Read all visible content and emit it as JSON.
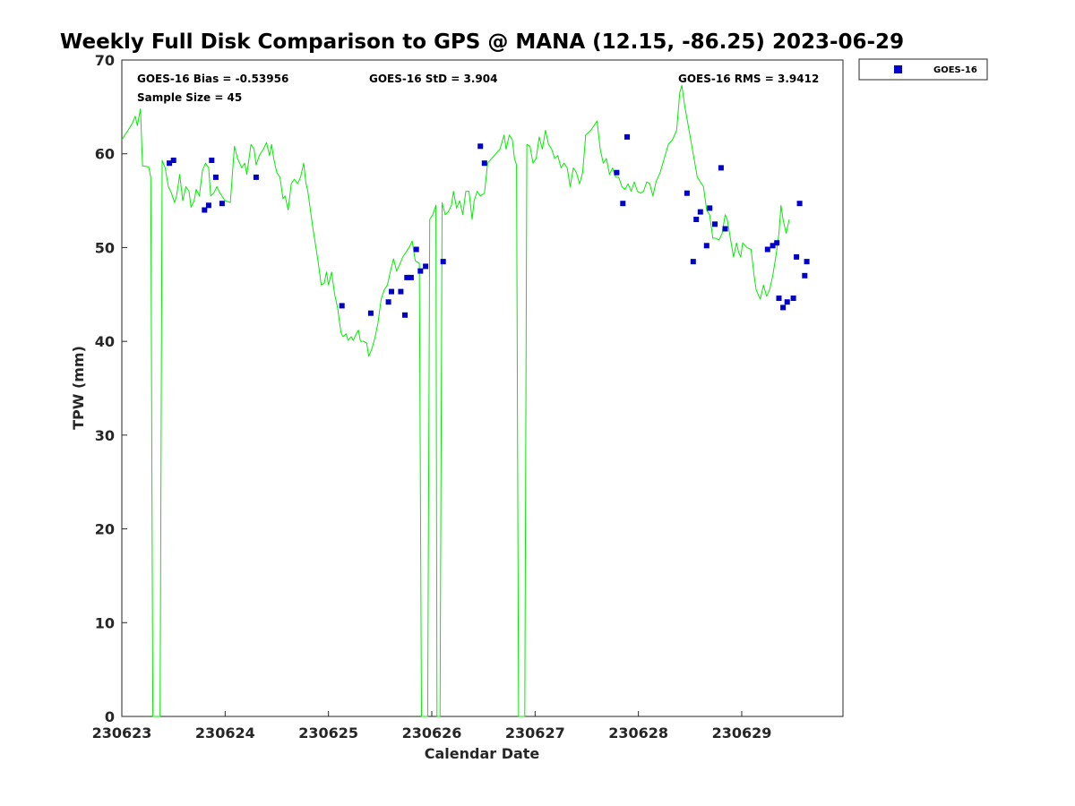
{
  "chart_data": {
    "type": "scatter",
    "title": "Weekly Full Disk Comparison to GPS @ MANA (12.15, -86.25) 2023-06-29",
    "xlabel": "Calendar Date",
    "ylabel": "TPW (mm)",
    "xlim": [
      0,
      6.98
    ],
    "ylim": [
      0,
      70
    ],
    "x_ticks": [
      0,
      1,
      2,
      3,
      4,
      5,
      6
    ],
    "x_tick_labels": [
      "230623",
      "230624",
      "230625",
      "230626",
      "230627",
      "230628",
      "230629"
    ],
    "y_ticks": [
      0,
      10,
      20,
      30,
      40,
      50,
      60,
      70
    ],
    "y_tick_labels": [
      "0",
      "10",
      "20",
      "30",
      "40",
      "50",
      "60",
      "70"
    ],
    "stats": {
      "bias": "GOES-16 Bias = -0.53956",
      "std": "GOES-16 StD = 3.904",
      "rms": "GOES-16 RMS = 3.9412",
      "sample": "Sample Size = 45"
    },
    "legend": [
      {
        "label": "GOES-16",
        "color": "#0000cd",
        "marker": "square"
      }
    ],
    "gps_series": {
      "name": "GPS",
      "color": "#00ee00",
      "points": [
        [
          0.0,
          61.5
        ],
        [
          0.06,
          62.5
        ],
        [
          0.1,
          63.2
        ],
        [
          0.13,
          64.0
        ],
        [
          0.15,
          63.0
        ],
        [
          0.18,
          64.8
        ],
        [
          0.2,
          58.7
        ],
        [
          0.26,
          58.6
        ],
        [
          0.28,
          57.5
        ],
        [
          0.3,
          0
        ],
        [
          0.37,
          0
        ],
        [
          0.39,
          59.3
        ],
        [
          0.42,
          58.5
        ],
        [
          0.45,
          56.5
        ],
        [
          0.48,
          55.8
        ],
        [
          0.51,
          54.8
        ],
        [
          0.53,
          55.5
        ],
        [
          0.56,
          57.8
        ],
        [
          0.59,
          55.0
        ],
        [
          0.62,
          56.5
        ],
        [
          0.65,
          56.0
        ],
        [
          0.67,
          54.3
        ],
        [
          0.7,
          55.0
        ],
        [
          0.72,
          56.2
        ],
        [
          0.75,
          55.5
        ],
        [
          0.78,
          58.2
        ],
        [
          0.81,
          59.0
        ],
        [
          0.84,
          58.5
        ],
        [
          0.86,
          55.5
        ],
        [
          0.89,
          55.8
        ],
        [
          0.92,
          56.5
        ],
        [
          0.95,
          55.8
        ],
        [
          1.0,
          55.0
        ],
        [
          1.05,
          54.8
        ],
        [
          1.09,
          60.8
        ],
        [
          1.12,
          59.5
        ],
        [
          1.16,
          58.5
        ],
        [
          1.19,
          59.0
        ],
        [
          1.21,
          57.8
        ],
        [
          1.25,
          61.0
        ],
        [
          1.28,
          60.5
        ],
        [
          1.3,
          58.8
        ],
        [
          1.33,
          59.8
        ],
        [
          1.37,
          60.5
        ],
        [
          1.4,
          61.2
        ],
        [
          1.43,
          59.8
        ],
        [
          1.45,
          61.0
        ],
        [
          1.47,
          59.5
        ],
        [
          1.5,
          58.0
        ],
        [
          1.53,
          57.5
        ],
        [
          1.56,
          55.2
        ],
        [
          1.58,
          55.5
        ],
        [
          1.61,
          54.0
        ],
        [
          1.64,
          56.8
        ],
        [
          1.67,
          57.3
        ],
        [
          1.7,
          56.8
        ],
        [
          1.73,
          57.5
        ],
        [
          1.76,
          59.0
        ],
        [
          1.78,
          57.0
        ],
        [
          1.8,
          56.0
        ],
        [
          1.85,
          52.0
        ],
        [
          1.9,
          48.5
        ],
        [
          1.93,
          46.0
        ],
        [
          1.96,
          46.2
        ],
        [
          1.98,
          47.4
        ],
        [
          2.0,
          46.0
        ],
        [
          2.03,
          47.4
        ],
        [
          2.06,
          45.0
        ],
        [
          2.09,
          43.5
        ],
        [
          2.12,
          41.0
        ],
        [
          2.14,
          40.5
        ],
        [
          2.17,
          40.8
        ],
        [
          2.19,
          40.1
        ],
        [
          2.22,
          40.5
        ],
        [
          2.24,
          40.1
        ],
        [
          2.27,
          40.8
        ],
        [
          2.29,
          41.2
        ],
        [
          2.31,
          40.0
        ],
        [
          2.34,
          40.0
        ],
        [
          2.37,
          39.8
        ],
        [
          2.39,
          38.4
        ],
        [
          2.42,
          39.2
        ],
        [
          2.45,
          40.4
        ],
        [
          2.48,
          42.0
        ],
        [
          2.51,
          44.5
        ],
        [
          2.54,
          45.5
        ],
        [
          2.57,
          46.0
        ],
        [
          2.6,
          47.5
        ],
        [
          2.63,
          48.8
        ],
        [
          2.66,
          47.5
        ],
        [
          2.69,
          48.2
        ],
        [
          2.72,
          49.0
        ],
        [
          2.75,
          49.5
        ],
        [
          2.79,
          50.2
        ],
        [
          2.81,
          50.7
        ],
        [
          2.84,
          48.6
        ],
        [
          2.88,
          48.3
        ],
        [
          2.9,
          0
        ],
        [
          2.96,
          0
        ],
        [
          2.98,
          53.0
        ],
        [
          3.01,
          53.5
        ],
        [
          3.04,
          54.5
        ],
        [
          3.05,
          0
        ],
        [
          3.08,
          0
        ],
        [
          3.1,
          54.8
        ],
        [
          3.13,
          53.5
        ],
        [
          3.16,
          53.8
        ],
        [
          3.19,
          54.5
        ],
        [
          3.21,
          56.0
        ],
        [
          3.24,
          54.2
        ],
        [
          3.27,
          55.0
        ],
        [
          3.3,
          53.5
        ],
        [
          3.33,
          56.0
        ],
        [
          3.36,
          56.0
        ],
        [
          3.39,
          53.0
        ],
        [
          3.41,
          55.0
        ],
        [
          3.44,
          56.0
        ],
        [
          3.47,
          55.5
        ],
        [
          3.51,
          55.8
        ],
        [
          3.54,
          59.0
        ],
        [
          3.58,
          59.5
        ],
        [
          3.62,
          60.0
        ],
        [
          3.66,
          60.5
        ],
        [
          3.7,
          62.0
        ],
        [
          3.72,
          60.5
        ],
        [
          3.75,
          62.0
        ],
        [
          3.78,
          61.5
        ],
        [
          3.8,
          59.5
        ],
        [
          3.82,
          58.8
        ],
        [
          3.84,
          0
        ],
        [
          3.9,
          0
        ],
        [
          3.92,
          61.0
        ],
        [
          3.95,
          60.8
        ],
        [
          3.98,
          59.0
        ],
        [
          4.01,
          59.5
        ],
        [
          4.04,
          61.8
        ],
        [
          4.07,
          60.5
        ],
        [
          4.1,
          62.5
        ],
        [
          4.13,
          61.0
        ],
        [
          4.16,
          60.5
        ],
        [
          4.19,
          59.5
        ],
        [
          4.22,
          59.8
        ],
        [
          4.25,
          58.5
        ],
        [
          4.28,
          59.0
        ],
        [
          4.31,
          58.5
        ],
        [
          4.34,
          56.5
        ],
        [
          4.37,
          58.5
        ],
        [
          4.4,
          58.0
        ],
        [
          4.43,
          56.8
        ],
        [
          4.46,
          58.0
        ],
        [
          4.49,
          62.0
        ],
        [
          4.54,
          62.5
        ],
        [
          4.6,
          63.5
        ],
        [
          4.63,
          60.5
        ],
        [
          4.66,
          59.0
        ],
        [
          4.69,
          59.5
        ],
        [
          4.72,
          57.8
        ],
        [
          4.75,
          58.5
        ],
        [
          4.78,
          57.5
        ],
        [
          4.81,
          57.5
        ],
        [
          4.84,
          56.5
        ],
        [
          4.87,
          56.2
        ],
        [
          4.9,
          56.8
        ],
        [
          4.93,
          56.0
        ],
        [
          4.96,
          57.0
        ],
        [
          4.99,
          56.0
        ],
        [
          5.02,
          55.8
        ],
        [
          5.05,
          56.0
        ],
        [
          5.08,
          57.0
        ],
        [
          5.11,
          56.8
        ],
        [
          5.14,
          55.5
        ],
        [
          5.17,
          57.0
        ],
        [
          5.21,
          58.0
        ],
        [
          5.25,
          59.5
        ],
        [
          5.29,
          61.0
        ],
        [
          5.33,
          61.5
        ],
        [
          5.37,
          62.5
        ],
        [
          5.4,
          66.5
        ],
        [
          5.42,
          67.3
        ],
        [
          5.45,
          65.0
        ],
        [
          5.49,
          62.5
        ],
        [
          5.53,
          60.0
        ],
        [
          5.57,
          57.5
        ],
        [
          5.6,
          57.0
        ],
        [
          5.63,
          56.5
        ],
        [
          5.66,
          54.0
        ],
        [
          5.69,
          53.5
        ],
        [
          5.72,
          51.0
        ],
        [
          5.75,
          51.0
        ],
        [
          5.78,
          50.8
        ],
        [
          5.81,
          51.5
        ],
        [
          5.84,
          53.5
        ],
        [
          5.86,
          53.0
        ],
        [
          5.89,
          51.0
        ],
        [
          5.92,
          49.0
        ],
        [
          5.95,
          50.5
        ],
        [
          5.97,
          49.5
        ],
        [
          5.99,
          49.0
        ],
        [
          6.01,
          50.5
        ],
        [
          6.05,
          50.0
        ],
        [
          6.09,
          49.8
        ],
        [
          6.12,
          47.0
        ],
        [
          6.14,
          45.5
        ],
        [
          6.16,
          45.0
        ],
        [
          6.18,
          44.5
        ],
        [
          6.21,
          46.0
        ],
        [
          6.24,
          44.8
        ],
        [
          6.27,
          45.5
        ],
        [
          6.3,
          47.0
        ],
        [
          6.33,
          49.0
        ],
        [
          6.36,
          51.5
        ],
        [
          6.38,
          54.5
        ],
        [
          6.4,
          53.0
        ],
        [
          6.43,
          51.5
        ],
        [
          6.46,
          53.0
        ]
      ]
    },
    "goes_series": {
      "name": "GOES-16",
      "color": "#0000cd",
      "points": [
        [
          0.46,
          59.0
        ],
        [
          0.5,
          59.3
        ],
        [
          0.8,
          54.0
        ],
        [
          0.84,
          54.5
        ],
        [
          0.87,
          59.3
        ],
        [
          0.91,
          57.5
        ],
        [
          0.97,
          54.7
        ],
        [
          1.3,
          57.5
        ],
        [
          2.13,
          43.8
        ],
        [
          2.41,
          43.0
        ],
        [
          2.58,
          44.2
        ],
        [
          2.61,
          45.3
        ],
        [
          2.7,
          45.3
        ],
        [
          2.74,
          42.8
        ],
        [
          2.76,
          46.8
        ],
        [
          2.8,
          46.8
        ],
        [
          2.85,
          49.8
        ],
        [
          2.89,
          47.5
        ],
        [
          2.94,
          48.0
        ],
        [
          3.11,
          48.5
        ],
        [
          3.47,
          60.8
        ],
        [
          3.51,
          59.0
        ],
        [
          4.79,
          58.0
        ],
        [
          4.85,
          54.7
        ],
        [
          4.89,
          61.8
        ],
        [
          5.47,
          55.8
        ],
        [
          5.53,
          48.5
        ],
        [
          5.56,
          53.0
        ],
        [
          5.6,
          53.8
        ],
        [
          5.66,
          50.2
        ],
        [
          5.69,
          54.2
        ],
        [
          5.74,
          52.5
        ],
        [
          5.8,
          58.5
        ],
        [
          5.84,
          52.0
        ],
        [
          6.25,
          49.8
        ],
        [
          6.3,
          50.2
        ],
        [
          6.34,
          50.5
        ],
        [
          6.36,
          44.6
        ],
        [
          6.4,
          43.6
        ],
        [
          6.44,
          44.2
        ],
        [
          6.5,
          44.6
        ],
        [
          6.53,
          49.0
        ],
        [
          6.56,
          54.7
        ],
        [
          6.61,
          47.0
        ],
        [
          6.63,
          48.5
        ]
      ]
    }
  }
}
